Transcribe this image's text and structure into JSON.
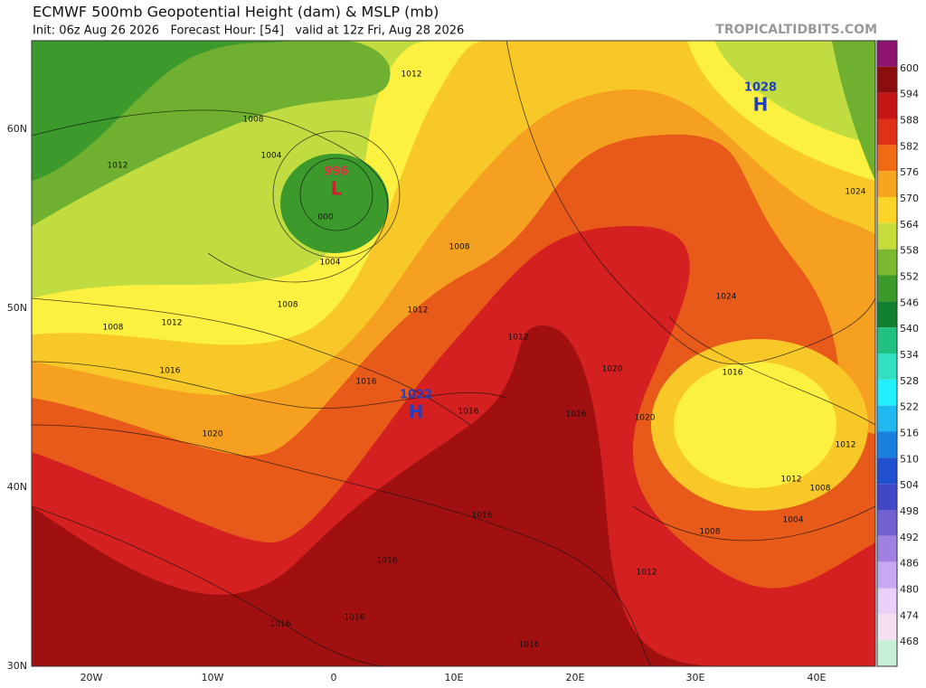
{
  "header": {
    "title": "ECMWF 500mb Geopotential Height (dam) & MSLP (mb)",
    "subtitle": "Init: 06z Aug 26 2026   Forecast Hour: [54]   valid at 12z Fri, Aug 28 2026",
    "brand": "TROPICALTIDBITS.COM"
  },
  "latitudes": [
    "60N",
    "50N",
    "40N",
    "30N"
  ],
  "longitudes": [
    "20W",
    "10W",
    "0",
    "10E",
    "20E",
    "30E",
    "40E"
  ],
  "pressure_centers": [
    {
      "value": "996",
      "letter": "L"
    },
    {
      "value": "1028",
      "letter": "H"
    },
    {
      "value": "1022",
      "letter": "H"
    }
  ],
  "isobar_labels": [
    "1012",
    "1008",
    "1012",
    "1004",
    "000",
    "1004",
    "1008",
    "1012",
    "1008",
    "1008",
    "1012",
    "1016",
    "1016",
    "1020",
    "1016",
    "1012",
    "1020",
    "1016",
    "1020",
    "1024",
    "1016",
    "1024",
    "1012",
    "1012",
    "1008",
    "1004",
    "1008",
    "1012",
    "1016",
    "1016",
    "1016",
    "1016",
    "1016"
  ],
  "colorbar": {
    "top_color": "#8e1470",
    "levels": [
      {
        "label": "600",
        "color": "#8b0d0d"
      },
      {
        "label": "594",
        "color": "#c41414"
      },
      {
        "label": "588",
        "color": "#e03018"
      },
      {
        "label": "582",
        "color": "#f06a14"
      },
      {
        "label": "576",
        "color": "#f6a51e"
      },
      {
        "label": "570",
        "color": "#fbd42a"
      },
      {
        "label": "564",
        "color": "#c8dc3c"
      },
      {
        "label": "558",
        "color": "#7cb830"
      },
      {
        "label": "552",
        "color": "#3c9a2c"
      },
      {
        "label": "546",
        "color": "#108030"
      },
      {
        "label": "540",
        "color": "#20c080"
      },
      {
        "label": "534",
        "color": "#30e0c0"
      },
      {
        "label": "528",
        "color": "#20f0ff"
      },
      {
        "label": "522",
        "color": "#20b8f0"
      },
      {
        "label": "516",
        "color": "#1a80e0"
      },
      {
        "label": "510",
        "color": "#2050d0"
      },
      {
        "label": "504",
        "color": "#4048c8"
      },
      {
        "label": "498",
        "color": "#7060d0"
      },
      {
        "label": "492",
        "color": "#a080e0"
      },
      {
        "label": "486",
        "color": "#c8a8f0"
      },
      {
        "label": "480",
        "color": "#e8d0f8"
      },
      {
        "label": "474",
        "color": "#f4e0f0"
      },
      {
        "label": "468",
        "color": "#c8f0d8"
      }
    ]
  }
}
